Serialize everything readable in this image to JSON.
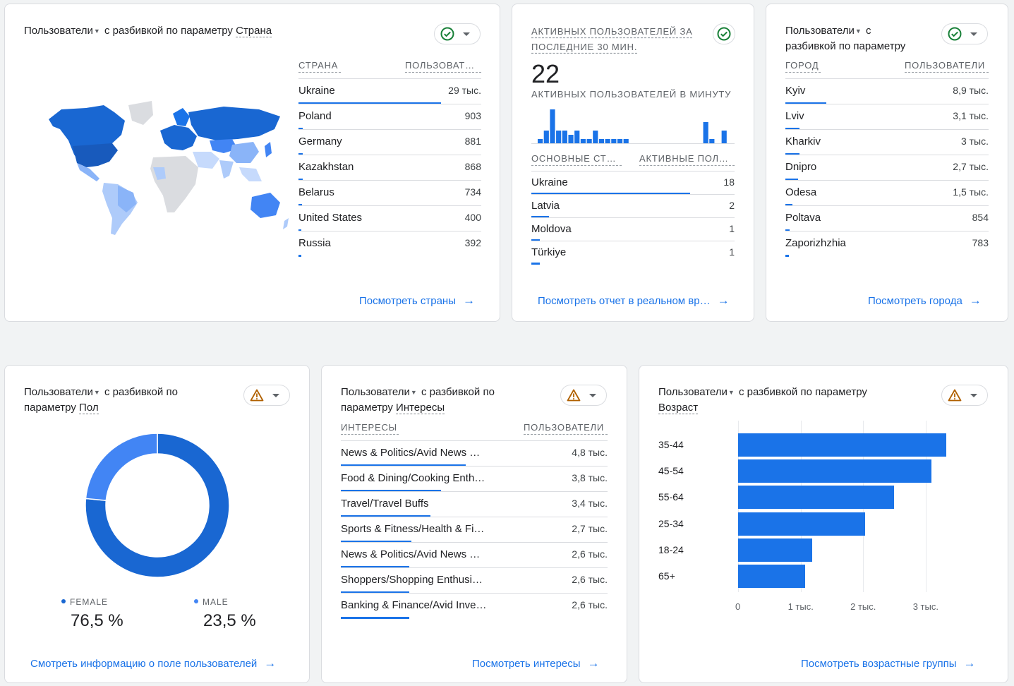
{
  "countries": {
    "title_pre": "Пользователи",
    "title_mid": " с разбивкой по параметру ",
    "title_param": "Страна",
    "col1": "СТРАНА",
    "col2": "ПОЛЬЗОВАТ…",
    "rows": [
      {
        "label": "Ukraine",
        "value": "29 тыс.",
        "fraction": 1.0
      },
      {
        "label": "Poland",
        "value": "903",
        "fraction": 0.031
      },
      {
        "label": "Germany",
        "value": "881",
        "fraction": 0.03
      },
      {
        "label": "Kazakhstan",
        "value": "868",
        "fraction": 0.03
      },
      {
        "label": "Belarus",
        "value": "734",
        "fraction": 0.025
      },
      {
        "label": "United States",
        "value": "400",
        "fraction": 0.014
      },
      {
        "label": "Russia",
        "value": "392",
        "fraction": 0.013
      }
    ],
    "link": "Посмотреть страны",
    "status": "ok"
  },
  "realtime": {
    "title": "АКТИВНЫХ ПОЛЬЗОВАТЕЛЕЙ ЗА ПОСЛЕДНИЕ 30 МИН.",
    "count": "22",
    "subtitle": "АКТИВНЫХ ПОЛЬЗОВАТЕЛЕЙ В МИНУТУ",
    "per_minute": [
      1,
      3,
      8,
      3,
      3,
      2,
      3,
      1,
      1,
      3,
      1,
      1,
      1,
      1,
      1,
      0,
      0,
      0,
      0,
      0,
      0,
      0,
      0,
      0,
      0,
      0,
      0,
      5,
      1,
      0,
      3,
      0
    ],
    "col1": "ОСНОВНЫЕ СТР…",
    "col2": "АКТИВНЫЕ ПОЛ…",
    "rows": [
      {
        "label": "Ukraine",
        "value": "18",
        "fraction": 1.0
      },
      {
        "label": "Latvia",
        "value": "2",
        "fraction": 0.11
      },
      {
        "label": "Moldova",
        "value": "1",
        "fraction": 0.055
      },
      {
        "label": "Türkiye",
        "value": "1",
        "fraction": 0.055
      }
    ],
    "link": "Посмотреть отчет в реальном вр…",
    "status": "ok"
  },
  "cities": {
    "title_line1": "Пользователи",
    "title_line1b": " с",
    "title_line2": "разбивкой по параметру",
    "col1": "ГОРОД",
    "col2": "ПОЛЬЗОВАТЕЛИ",
    "rows": [
      {
        "label": "Kyiv",
        "value": "8,9 тыс.",
        "fraction": 0.26
      },
      {
        "label": "Lviv",
        "value": "3,1 тыс.",
        "fraction": 0.09
      },
      {
        "label": "Kharkiv",
        "value": "3 тыс.",
        "fraction": 0.087
      },
      {
        "label": "Dnipro",
        "value": "2,7 тыс.",
        "fraction": 0.078
      },
      {
        "label": "Odesa",
        "value": "1,5 тыс.",
        "fraction": 0.045
      },
      {
        "label": "Poltava",
        "value": "854",
        "fraction": 0.025
      },
      {
        "label": "Zaporizhzhia",
        "value": "783",
        "fraction": 0.023
      }
    ],
    "link": "Посмотреть города",
    "status": "ok"
  },
  "gender": {
    "title_pre": "Пользователи",
    "title_mid": " с разбивкой по",
    "title_line2": "параметру ",
    "title_param": "Пол",
    "chart_data": {
      "type": "pie",
      "categories": [
        "FEMALE",
        "MALE"
      ],
      "values": [
        76.5,
        23.5
      ],
      "colors": [
        "#1967d2",
        "#4285f4"
      ]
    },
    "female_label": "FEMALE",
    "female_value": "76,5 %",
    "male_label": "MALE",
    "male_value": "23,5 %",
    "link": "Смотреть информацию о поле пользователей",
    "status": "warning"
  },
  "interests": {
    "title_pre": "Пользователи",
    "title_mid": " с разбивкой по",
    "title_line2": "параметру ",
    "title_param": "Интересы",
    "col1": "ИНТЕРЕСЫ",
    "col2": "ПОЛЬЗОВАТЕЛИ",
    "rows": [
      {
        "label": "News & Politics/Avid News …",
        "value": "4,8 тыс.",
        "fraction": 0.6
      },
      {
        "label": "Food & Dining/Cooking Enth…",
        "value": "3,8 тыс.",
        "fraction": 0.48
      },
      {
        "label": "Travel/Travel Buffs",
        "value": "3,4 тыс.",
        "fraction": 0.43
      },
      {
        "label": "Sports & Fitness/Health & Fi…",
        "value": "2,7 тыс.",
        "fraction": 0.34
      },
      {
        "label": "News & Politics/Avid News …",
        "value": "2,6 тыс.",
        "fraction": 0.33
      },
      {
        "label": "Shoppers/Shopping Enthusi…",
        "value": "2,6 тыс.",
        "fraction": 0.33
      },
      {
        "label": "Banking & Finance/Avid Inve…",
        "value": "2,6 тыс.",
        "fraction": 0.33
      }
    ],
    "link": "Посмотреть интересы",
    "status": "warning"
  },
  "age": {
    "title_pre": "Пользователи",
    "title_mid": " с разбивкой по параметру",
    "title_param": "Возраст",
    "chart_data": {
      "type": "bar",
      "orientation": "horizontal",
      "categories": [
        "35-44",
        "45-54",
        "55-64",
        "25-34",
        "18-24",
        "65+"
      ],
      "values": [
        3330,
        3090,
        2490,
        2030,
        1190,
        1070
      ],
      "xlim": [
        0,
        3500
      ],
      "xticks": [
        0,
        1000,
        2000,
        3000
      ],
      "xtick_labels": [
        "0",
        "1 тыс.",
        "2 тыс.",
        "3 тыс."
      ],
      "grid": true
    },
    "link": "Посмотреть возрастные группы",
    "status": "warning"
  },
  "colors": {
    "accent": "#1a73e8",
    "ok": "#188038",
    "warning": "#b06000"
  }
}
